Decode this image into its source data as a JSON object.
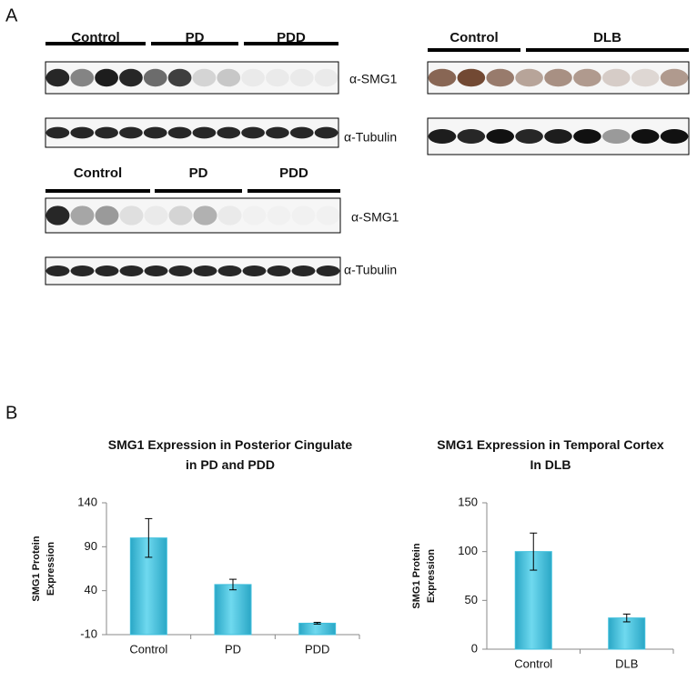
{
  "figure": {
    "panel_a": "A",
    "panel_b": "B",
    "blots": [
      {
        "groups": [
          "Control",
          "PD",
          "PDD"
        ],
        "rows": [
          "α-SMG1",
          "α-Tubulin"
        ]
      },
      {
        "groups": [
          "Control",
          "DLB"
        ]
      },
      {
        "groups": [
          "Control",
          "PD",
          "PDD"
        ],
        "rows": [
          "α-SMG1",
          "α-Tubulin"
        ]
      }
    ]
  },
  "chart_data": [
    {
      "type": "bar",
      "title": [
        "SMG1 Expression in Posterior Cingulate",
        "in PD and PDD"
      ],
      "y_label": [
        "SMG1 Protein",
        "Expression"
      ],
      "categories": [
        "Control",
        "PD",
        "PDD"
      ],
      "values": [
        100,
        47,
        3
      ],
      "errors": [
        22,
        6,
        1
      ],
      "color": "#3fbfdc",
      "ylim": [
        -10,
        140
      ],
      "yticks": [
        -10,
        40,
        90,
        140
      ]
    },
    {
      "type": "bar",
      "title": [
        "SMG1 Expression in Temporal Cortex",
        "In DLB"
      ],
      "y_label": [
        "SMG1 Protein",
        "Expression"
      ],
      "categories": [
        "Control",
        "DLB"
      ],
      "values": [
        100,
        32
      ],
      "errors": [
        19,
        4
      ],
      "color": "#3fbfdc",
      "ylim": [
        0,
        150
      ],
      "yticks": [
        0,
        50,
        100,
        150
      ]
    }
  ]
}
